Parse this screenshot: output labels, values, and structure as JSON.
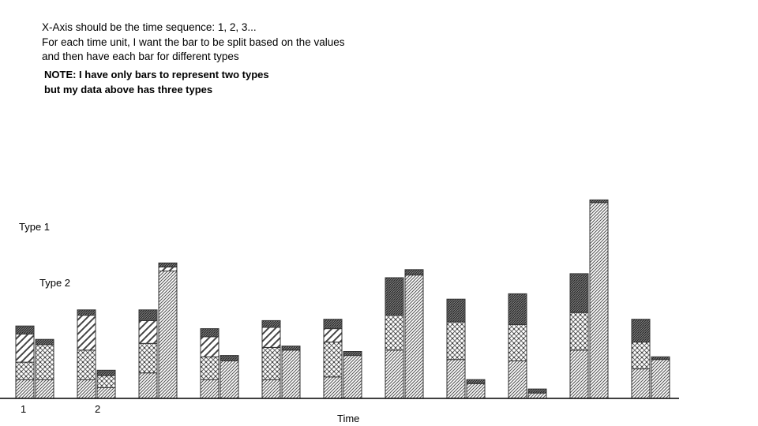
{
  "annotation": {
    "lines": [
      "X-Axis should be the time sequence: 1, 2, 3...",
      "For each time unit, I want the bar to be split based on the values",
      "and then have each bar for different types"
    ],
    "note_lines": [
      "NOTE: I have only bars to represent two types",
      "but my data above has three types"
    ]
  },
  "chart_data": {
    "type": "bar",
    "stacked": true,
    "grouped": true,
    "xlabel": "Time",
    "ylabel": "",
    "categories": [
      "1",
      "2",
      "",
      "",
      "",
      "",
      "",
      "",
      "",
      "",
      ""
    ],
    "type_labels": [
      "Type 1",
      "Type 2"
    ],
    "ylim": [
      0,
      100
    ],
    "groups": [
      {
        "name": "Type 1",
        "segments": [
          [
            14,
            13,
            21,
            6
          ],
          [
            14,
            22,
            26,
            4
          ],
          [
            19,
            22,
            17,
            8
          ],
          [
            14,
            17,
            15,
            6
          ],
          [
            14,
            24,
            15,
            5
          ],
          [
            16,
            26,
            10,
            7
          ],
          [
            36,
            26,
            0,
            28
          ],
          [
            29,
            28,
            0,
            17
          ],
          [
            28,
            27,
            0,
            23
          ],
          [
            36,
            28,
            0,
            29
          ],
          [
            22,
            20,
            0,
            17
          ]
        ]
      },
      {
        "name": "Type 2",
        "segments": [
          [
            14,
            26,
            0,
            4
          ],
          [
            8,
            9,
            0,
            4
          ],
          [
            95,
            0,
            3,
            3
          ],
          [
            28,
            0,
            0,
            4
          ],
          [
            36,
            0,
            0,
            3
          ],
          [
            32,
            0,
            0,
            3
          ],
          [
            92,
            0,
            0,
            4
          ],
          [
            11,
            0,
            0,
            3
          ],
          [
            4,
            0,
            0,
            3
          ],
          [
            146,
            0,
            0,
            2
          ],
          [
            29,
            0,
            0,
            2
          ]
        ]
      }
    ]
  }
}
